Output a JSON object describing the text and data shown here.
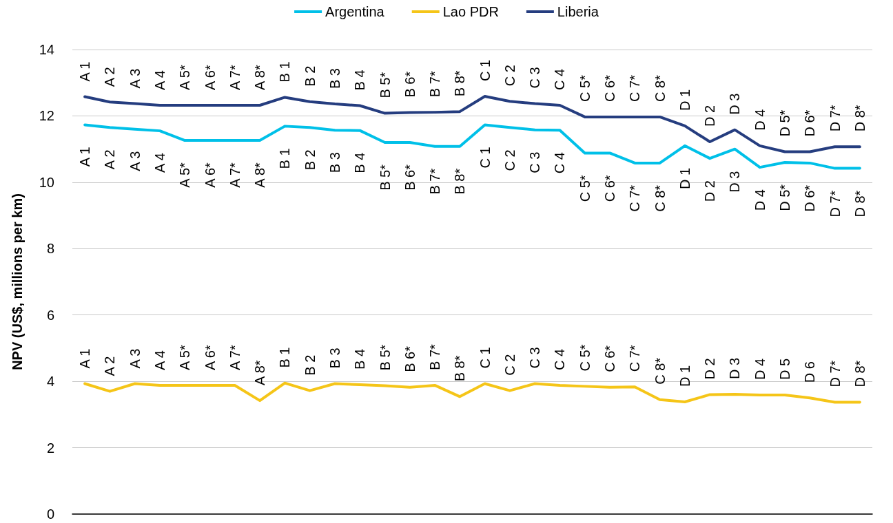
{
  "chart_data": {
    "type": "line",
    "ylabel": "NPV (US$, millions per km)",
    "categories": [
      null,
      null,
      null,
      null,
      null,
      null,
      null,
      null,
      null,
      null,
      null,
      null,
      null,
      null,
      null,
      null,
      null,
      null,
      null,
      null,
      null,
      null,
      null,
      null,
      null,
      null,
      null,
      null,
      null,
      null,
      null,
      null
    ],
    "ylim": [
      0,
      14
    ],
    "yticks": [
      0,
      2,
      4,
      6,
      8,
      10,
      12,
      14
    ],
    "grid": "y",
    "legend": "top",
    "marker": "none",
    "line_style": "solid",
    "series": [
      {
        "name": "Argentina",
        "color": "#00c0e8",
        "values": [
          11.73,
          11.65,
          11.6,
          11.55,
          11.26,
          11.26,
          11.26,
          11.26,
          11.69,
          11.65,
          11.57,
          11.56,
          11.2,
          11.2,
          11.08,
          11.08,
          11.73,
          11.65,
          11.58,
          11.57,
          10.88,
          10.88,
          10.58,
          10.58,
          11.1,
          10.72,
          11.0,
          10.45,
          10.6,
          10.58,
          10.42,
          10.42
        ],
        "value_labels": [
          "A 1",
          "A 2",
          "A 3",
          "A 4",
          "A 5*",
          "A 6*",
          "A 7*",
          "A 8*",
          "B 1",
          "B 2",
          "B 3",
          "B 4",
          "B 5*",
          "B 6*",
          "B 7*",
          "B 8*",
          "C 1",
          "C 2",
          "C 3",
          "C 4",
          "C 5*",
          "C 6*",
          "C 7*",
          "C 8*",
          "D 1",
          "D 2",
          "D 3",
          "D 4",
          "D 5*",
          "D 6*",
          "D 7*",
          "D 8*"
        ]
      },
      {
        "name": "Lao PDR",
        "color": "#f5c518",
        "values": [
          3.93,
          3.7,
          3.93,
          3.88,
          3.88,
          3.88,
          3.88,
          3.42,
          3.95,
          3.72,
          3.93,
          3.9,
          3.87,
          3.82,
          3.88,
          3.54,
          3.93,
          3.72,
          3.93,
          3.88,
          3.85,
          3.82,
          3.83,
          3.45,
          3.38,
          3.6,
          3.61,
          3.59,
          3.59,
          3.5,
          3.37,
          3.37
        ],
        "value_labels": [
          "A 1",
          "A 2",
          "A 3",
          "A 4",
          "A 5*",
          "A 6*",
          "A 7*",
          "A 8*",
          "B 1",
          "B 2",
          "B 3",
          "B 4",
          "B 5*",
          "B 6*",
          "B 7*",
          "B 8*",
          "C 1",
          "C 2",
          "C 3",
          "C 4",
          "C 5*",
          "C 6*",
          "C 7*",
          "C 8*",
          "D 1",
          "D 2",
          "D 3",
          "D 4",
          "D 5",
          "D 6",
          "D 7*",
          "D 8*"
        ]
      },
      {
        "name": "Liberia",
        "color": "#253d7f",
        "values": [
          12.58,
          12.42,
          12.37,
          12.32,
          12.32,
          12.32,
          12.32,
          12.32,
          12.56,
          12.43,
          12.36,
          12.31,
          12.08,
          12.1,
          12.11,
          12.13,
          12.59,
          12.44,
          12.37,
          12.32,
          11.97,
          11.97,
          11.97,
          11.97,
          11.7,
          11.22,
          11.58,
          11.1,
          10.92,
          10.92,
          11.07,
          11.07
        ],
        "value_labels": [
          "A 1",
          "A 2",
          "A 3",
          "A 4",
          "A 5*",
          "A 6*",
          "A 7*",
          "A 8*",
          "B 1",
          "B 2",
          "B 3",
          "B 4",
          "B 5*",
          "B 6*",
          "B 7*",
          "B 8*",
          "C 1",
          "C 2",
          "C 3",
          "C 4",
          "C 5*",
          "C 6*",
          "C 7*",
          "C 8*",
          "D 1",
          "D 2",
          "D 3",
          "D 4",
          "D 5*",
          "D 6*",
          "D 7*",
          "D 8*"
        ]
      }
    ]
  }
}
